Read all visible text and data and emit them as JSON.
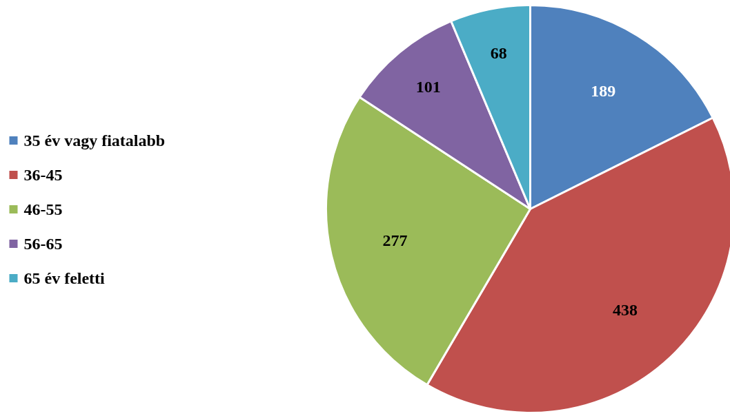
{
  "chart_data": {
    "type": "pie",
    "categories": [
      "35 év vagy fiatalabb",
      "36-45",
      "46-55",
      "56-65",
      "65 év feletti"
    ],
    "values": [
      189,
      438,
      277,
      101,
      68
    ],
    "colors": [
      "#4f81bd",
      "#c0504d",
      "#9bbb59",
      "#8064a2",
      "#4bacc6"
    ],
    "data_labels": true,
    "legend": "left"
  }
}
